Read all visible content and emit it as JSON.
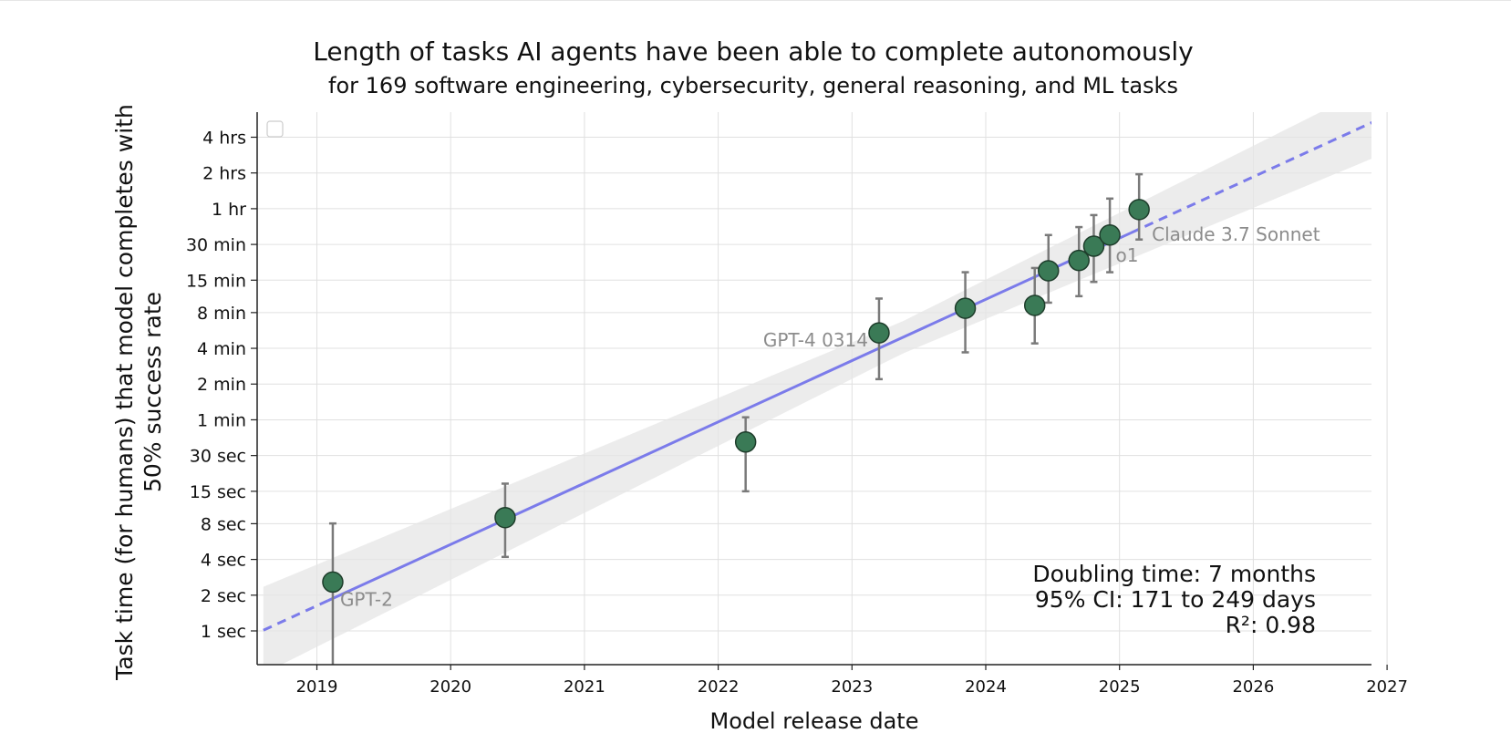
{
  "chart_data": {
    "type": "scatter",
    "title": "Length of tasks AI agents have been able to complete autonomously",
    "subtitle": "for 169 software engineering, cybersecurity, general reasoning, and ML tasks",
    "xlabel": "Model release date",
    "ylabel": "Task time (for humans) that model completes with 50% success rate",
    "xlim": [
      "2018-08",
      "2027-01"
    ],
    "ylim_minutes": [
      0.0083,
      300
    ],
    "y_scale": "log",
    "grid": true,
    "x_ticks": [
      "2019",
      "2020",
      "2021",
      "2022",
      "2023",
      "2024",
      "2025",
      "2026",
      "2027"
    ],
    "y_ticks": [
      {
        "label": "1 sec",
        "minutes": 0.01667
      },
      {
        "label": "2 sec",
        "minutes": 0.03333
      },
      {
        "label": "4 sec",
        "minutes": 0.06667
      },
      {
        "label": "8 sec",
        "minutes": 0.13333
      },
      {
        "label": "15 sec",
        "minutes": 0.25
      },
      {
        "label": "30 sec",
        "minutes": 0.5
      },
      {
        "label": "1 min",
        "minutes": 1
      },
      {
        "label": "2 min",
        "minutes": 2
      },
      {
        "label": "4 min",
        "minutes": 4
      },
      {
        "label": "8 min",
        "minutes": 8
      },
      {
        "label": "15 min",
        "minutes": 15
      },
      {
        "label": "30 min",
        "minutes": 30
      },
      {
        "label": "1 hr",
        "minutes": 60
      },
      {
        "label": "2 hrs",
        "minutes": 120
      },
      {
        "label": "4 hrs",
        "minutes": 240
      }
    ],
    "points": [
      {
        "date": "2019-02-14",
        "minutes": 0.043,
        "ci_low": 0.0075,
        "ci_high": 0.134,
        "label": "GPT-2"
      },
      {
        "date": "2020-05-28",
        "minutes": 0.15,
        "ci_low": 0.07,
        "ci_high": 0.29,
        "label": ""
      },
      {
        "date": "2022-03-15",
        "minutes": 0.65,
        "ci_low": 0.25,
        "ci_high": 1.05,
        "label": ""
      },
      {
        "date": "2023-03-14",
        "minutes": 5.4,
        "ci_low": 2.2,
        "ci_high": 10.5,
        "label": "GPT-4 0314"
      },
      {
        "date": "2023-11-06",
        "minutes": 8.7,
        "ci_low": 3.7,
        "ci_high": 17.5,
        "label": ""
      },
      {
        "date": "2024-05-13",
        "minutes": 9.2,
        "ci_low": 4.4,
        "ci_high": 19.0,
        "label": ""
      },
      {
        "date": "2024-06-20",
        "minutes": 18.0,
        "ci_low": 9.7,
        "ci_high": 36.0,
        "label": ""
      },
      {
        "date": "2024-09-12",
        "minutes": 22.0,
        "ci_low": 11.0,
        "ci_high": 42.0,
        "label": ""
      },
      {
        "date": "2024-10-22",
        "minutes": 29.0,
        "ci_low": 14.5,
        "ci_high": 53.0,
        "label": "o1"
      },
      {
        "date": "2024-12-05",
        "minutes": 36.0,
        "ci_low": 17.5,
        "ci_high": 73.0,
        "label": ""
      },
      {
        "date": "2025-02-24",
        "minutes": 59.0,
        "ci_low": 33.0,
        "ci_high": 117.0,
        "label": "Claude 3.7 Sonnet"
      }
    ],
    "trend": {
      "doubling_time_months": 7,
      "observed_range": [
        "2019-02",
        "2025-02"
      ],
      "extrapolated": true
    },
    "annotation": [
      "Doubling time: 7 months",
      "95% CI: 171 to 249 days",
      "R²: 0.98"
    ],
    "colors": {
      "points": "#3a7a56",
      "trend": "#7b7bea",
      "band": "#e6e6e6",
      "error_bar": "#7a7a7a",
      "label_gray": "#8c8c8c"
    }
  }
}
